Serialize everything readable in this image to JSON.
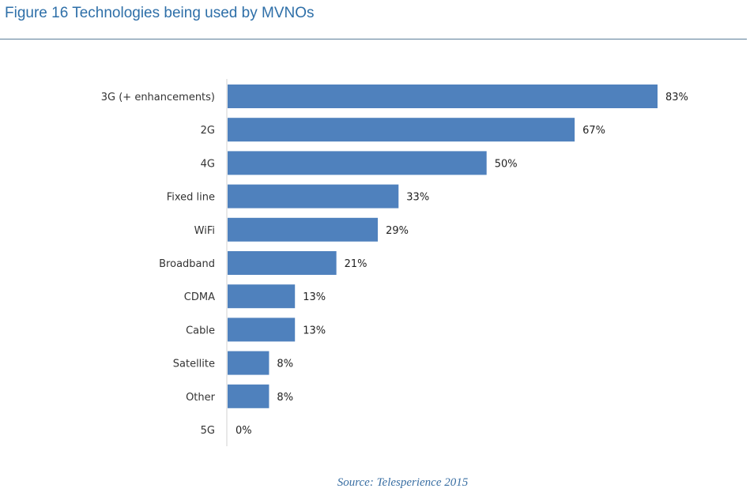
{
  "figure": {
    "title": "Figure 16 Technologies being used by MVNOs",
    "source": "Source: Telesperience 2015"
  },
  "colors": {
    "bar": "#4f81bd",
    "title": "#2e6fa8",
    "source": "#3a6fa3",
    "axis": "#d0d0d0"
  },
  "chart_data": {
    "type": "bar",
    "orientation": "horizontal",
    "categories": [
      "3G (+ enhancements)",
      "2G",
      "4G",
      "Fixed line",
      "WiFi",
      "Broadband",
      "CDMA",
      "Cable",
      "Satellite",
      "Other",
      "5G"
    ],
    "values": [
      83,
      67,
      50,
      33,
      29,
      21,
      13,
      13,
      8,
      8,
      0
    ],
    "value_labels": [
      "83%",
      "67%",
      "50%",
      "33%",
      "29%",
      "21%",
      "13%",
      "13%",
      "8%",
      "8%",
      "0%"
    ],
    "unit": "%",
    "xlim": [
      0,
      83
    ],
    "grid": false,
    "legend": "none"
  }
}
